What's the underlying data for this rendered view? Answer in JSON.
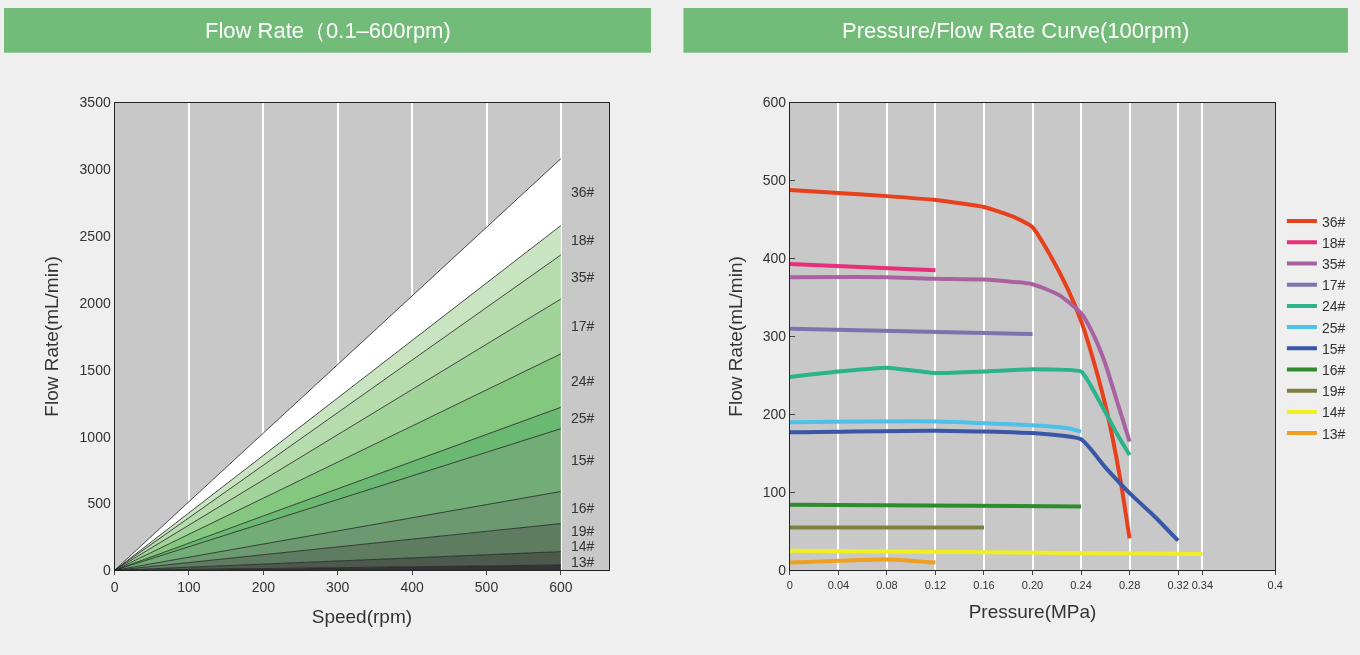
{
  "chart_data": [
    {
      "type": "area",
      "title": "Flow Rate（0.1–600rpm)",
      "xlabel": "Speed(rpm)",
      "ylabel": "Flow Rate(mL/min)",
      "xlim": [
        0,
        665
      ],
      "xticks": [
        0,
        100,
        200,
        300,
        400,
        500,
        600
      ],
      "ylim": [
        0,
        3500
      ],
      "yticks": [
        0,
        500,
        1000,
        1500,
        2000,
        2500,
        3000,
        3500
      ],
      "grid": "x",
      "legend": false,
      "series": [
        {
          "name": "36#",
          "color": "#ffffff",
          "x": [
            0,
            600
          ],
          "values": [
            0,
            3080
          ]
        },
        {
          "name": "18#",
          "color": "#c9e4c1",
          "x": [
            0,
            600
          ],
          "values": [
            0,
            2580
          ]
        },
        {
          "name": "35#",
          "color": "#b6dcad",
          "x": [
            0,
            600
          ],
          "values": [
            0,
            2360
          ]
        },
        {
          "name": "17#",
          "color": "#a2d39a",
          "x": [
            0,
            600
          ],
          "values": [
            0,
            2030
          ]
        },
        {
          "name": "24#",
          "color": "#84c880",
          "x": [
            0,
            600
          ],
          "values": [
            0,
            1620
          ]
        },
        {
          "name": "25#",
          "color": "#6ab872",
          "x": [
            0,
            600
          ],
          "values": [
            0,
            1220
          ]
        },
        {
          "name": "15#",
          "color": "#72ad78",
          "x": [
            0,
            600
          ],
          "values": [
            0,
            1060
          ]
        },
        {
          "name": "16#",
          "color": "#6c9970",
          "x": [
            0,
            600
          ],
          "values": [
            0,
            590
          ]
        },
        {
          "name": "19#",
          "color": "#5d7c60",
          "x": [
            0,
            600
          ],
          "values": [
            0,
            350
          ]
        },
        {
          "name": "14#",
          "color": "#4c5a4e",
          "x": [
            0,
            600
          ],
          "values": [
            0,
            140
          ]
        },
        {
          "name": "13#",
          "color": "#333333",
          "x": [
            0,
            600
          ],
          "values": [
            0,
            40
          ]
        }
      ]
    },
    {
      "type": "line",
      "title": "Pressure/Flow Rate Curve(100rpm)",
      "xlabel": "Pressure(MPa)",
      "ylabel": "Flow Rate(mL/min)",
      "xlim": [
        0,
        0.4
      ],
      "xticks": [
        0,
        0.04,
        0.08,
        0.12,
        0.16,
        {
          "value": 0.2,
          "label": "0.20"
        },
        0.24,
        0.28,
        0.32,
        0.34,
        0.4
      ],
      "ylim": [
        0,
        600
      ],
      "yticks": [
        0,
        100,
        200,
        300,
        400,
        500,
        600
      ],
      "grid": "x",
      "legend": "right",
      "marker": "none",
      "line_style": "solid",
      "series": [
        {
          "name": "36#",
          "color": "#e8401c",
          "x": [
            0,
            0.04,
            0.08,
            0.12,
            0.16,
            0.185,
            0.2,
            0.215,
            0.229,
            0.24,
            0.251,
            0.262,
            0.272,
            0.28
          ],
          "values": [
            488,
            484,
            480,
            475,
            466,
            453,
            440,
            403,
            361,
            320,
            265,
            199,
            120,
            41
          ]
        },
        {
          "name": "18#",
          "color": "#e8307a",
          "x": [
            0,
            0.12
          ],
          "values": [
            393,
            385
          ]
        },
        {
          "name": "35#",
          "color": "#a862a0",
          "x": [
            0,
            0.08,
            0.12,
            0.16,
            0.2,
            0.222,
            0.24,
            0.25,
            0.26,
            0.27,
            0.28
          ],
          "values": [
            376,
            376,
            374,
            373,
            367,
            353,
            330,
            303,
            265,
            215,
            165
          ]
        },
        {
          "name": "17#",
          "color": "#7f72b0",
          "x": [
            0,
            0.2
          ],
          "values": [
            310,
            303
          ]
        },
        {
          "name": "24#",
          "color": "#2bb38a",
          "x": [
            0,
            0.04,
            0.08,
            0.12,
            0.16,
            0.2,
            0.24,
            0.245,
            0.26,
            0.27,
            0.28
          ],
          "values": [
            248,
            255,
            260,
            253,
            255,
            258,
            255,
            245,
            203,
            174,
            148
          ]
        },
        {
          "name": "25#",
          "color": "#4dc1e8",
          "x": [
            0,
            0.12,
            0.2,
            0.23,
            0.24
          ],
          "values": [
            190,
            191,
            186,
            182,
            178
          ]
        },
        {
          "name": "15#",
          "color": "#3a57a7",
          "x": [
            0,
            0.12,
            0.2,
            0.24,
            0.26,
            0.28,
            0.3,
            0.32
          ],
          "values": [
            177,
            179,
            176,
            168,
            132,
            99,
            70,
            38
          ]
        },
        {
          "name": "16#",
          "color": "#2e8b2e",
          "x": [
            0,
            0.24
          ],
          "values": [
            84,
            82
          ]
        },
        {
          "name": "19#",
          "color": "#7f803f",
          "x": [
            0,
            0.16
          ],
          "values": [
            55,
            55
          ]
        },
        {
          "name": "14#",
          "color": "#f0f020",
          "x": [
            0,
            0.34
          ],
          "values": [
            25,
            21
          ]
        },
        {
          "name": "13#",
          "color": "#f0a020",
          "x": [
            0,
            0.08,
            0.12
          ],
          "values": [
            10,
            14,
            10
          ]
        }
      ]
    }
  ]
}
